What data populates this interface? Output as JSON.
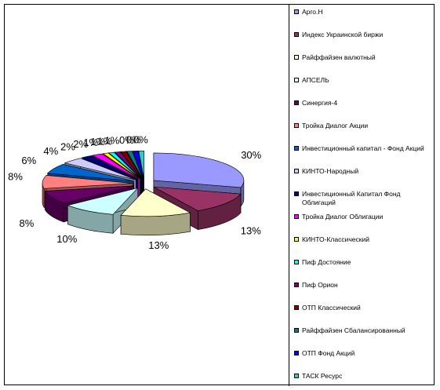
{
  "chart_data": {
    "type": "pie",
    "style": "3d-exploded",
    "legend_position": "right",
    "categories": [
      "Арго.Н",
      "Индекс Украинской биржи",
      "Райффайзен валютный",
      "АПСЕЛЬ",
      "Синергия-4",
      "Тройка Диалог Акции",
      "Инвестиционный капитал - Фонд Акций",
      "КИНТО-Народный",
      "Инвестиционный Капитал Фонд Облигаций",
      "Тройка Диалог Облигации",
      "КИНТО-Классический",
      "Пиф Достояние",
      "Пиф Орион",
      "ОТП Классический",
      "Райффайзен Сбалансированный",
      "ОТП Фонд Акций",
      "ТАСК Ресурс"
    ],
    "values": [
      30,
      13,
      13,
      10,
      8,
      8,
      6,
      4,
      2,
      2,
      1,
      1,
      1,
      1,
      0,
      0,
      0
    ],
    "data_labels": [
      "30%",
      "13%",
      "13%",
      "10%",
      "8%",
      "8%",
      "6%",
      "4%",
      "2%",
      "2%",
      "1%",
      "1%",
      "1%",
      "1%",
      "0%",
      "0%",
      "0%"
    ],
    "colors": [
      "#9999FF",
      "#993366",
      "#FFFFCC",
      "#CCFFFF",
      "#660066",
      "#FF8080",
      "#0066CC",
      "#CCCCFF",
      "#000080",
      "#FF00FF",
      "#FFFF00",
      "#00FFFF",
      "#800080",
      "#800000",
      "#008080",
      "#0000FF",
      "#33CCCC"
    ]
  }
}
